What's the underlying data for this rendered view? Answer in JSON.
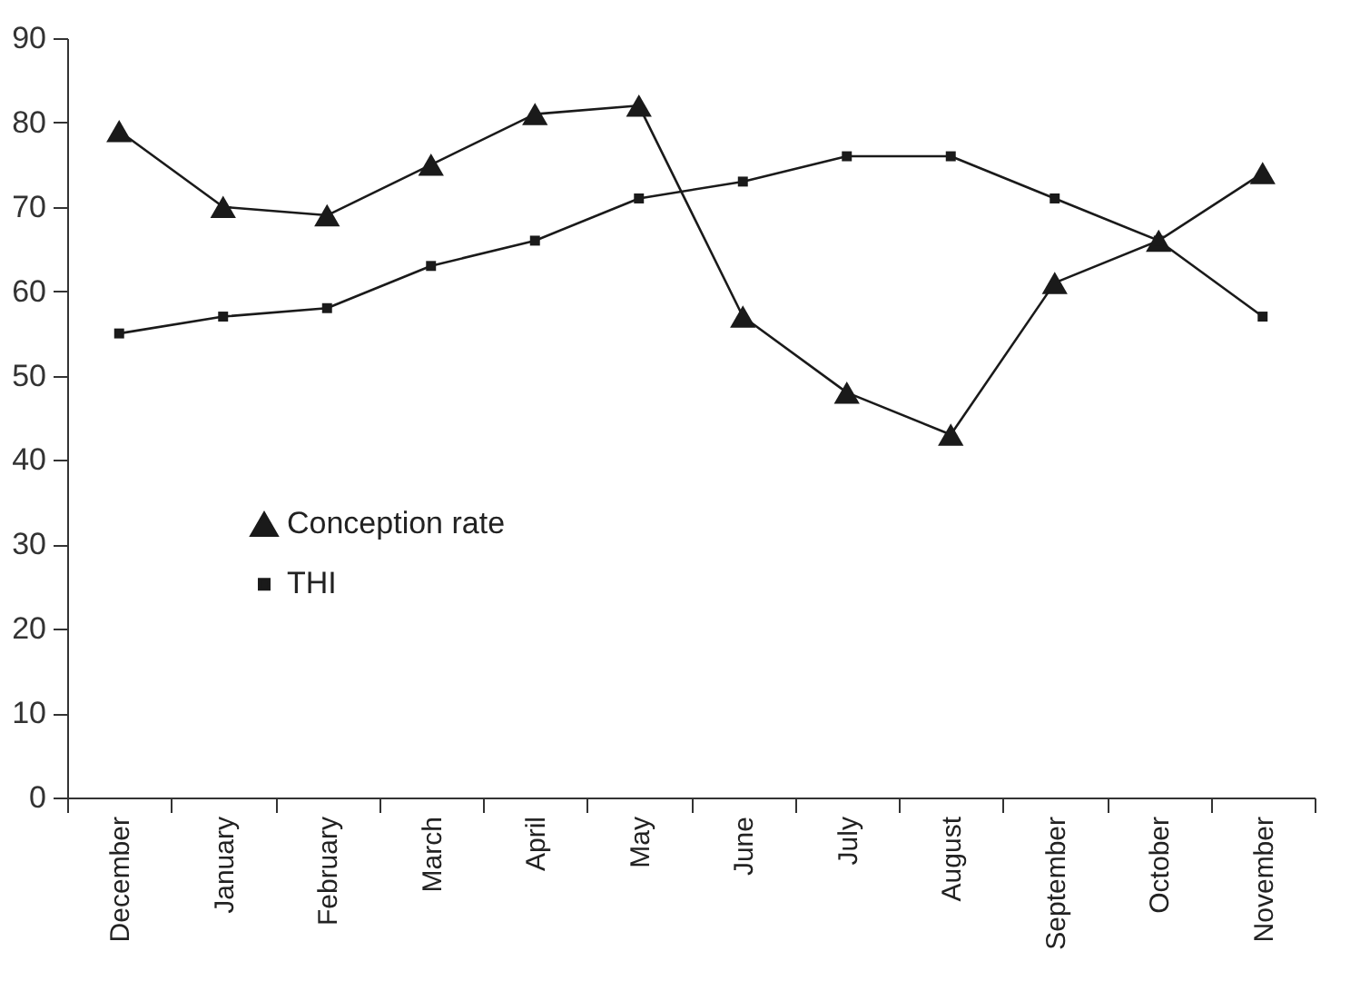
{
  "chart_data": {
    "type": "line",
    "categories": [
      "December",
      "January",
      "February",
      "March",
      "April",
      "May",
      "June",
      "July",
      "August",
      "September",
      "October",
      "November"
    ],
    "series": [
      {
        "name": "Conception rate",
        "color": "#1a1a1a",
        "marker": "triangle",
        "values": [
          79,
          70,
          69,
          75,
          81,
          82,
          57,
          48,
          43,
          61,
          66,
          74
        ]
      },
      {
        "name": "THI",
        "color": "#1a1a1a",
        "marker": "square",
        "values": [
          55,
          57,
          58,
          63,
          66,
          71,
          73,
          76,
          76,
          71,
          66,
          57
        ]
      }
    ],
    "ylim": [
      0,
      90
    ],
    "yticks": [
      0,
      10,
      20,
      30,
      40,
      50,
      60,
      70,
      80,
      90
    ],
    "grid": false,
    "legend": "left",
    "line_style": "solid"
  }
}
